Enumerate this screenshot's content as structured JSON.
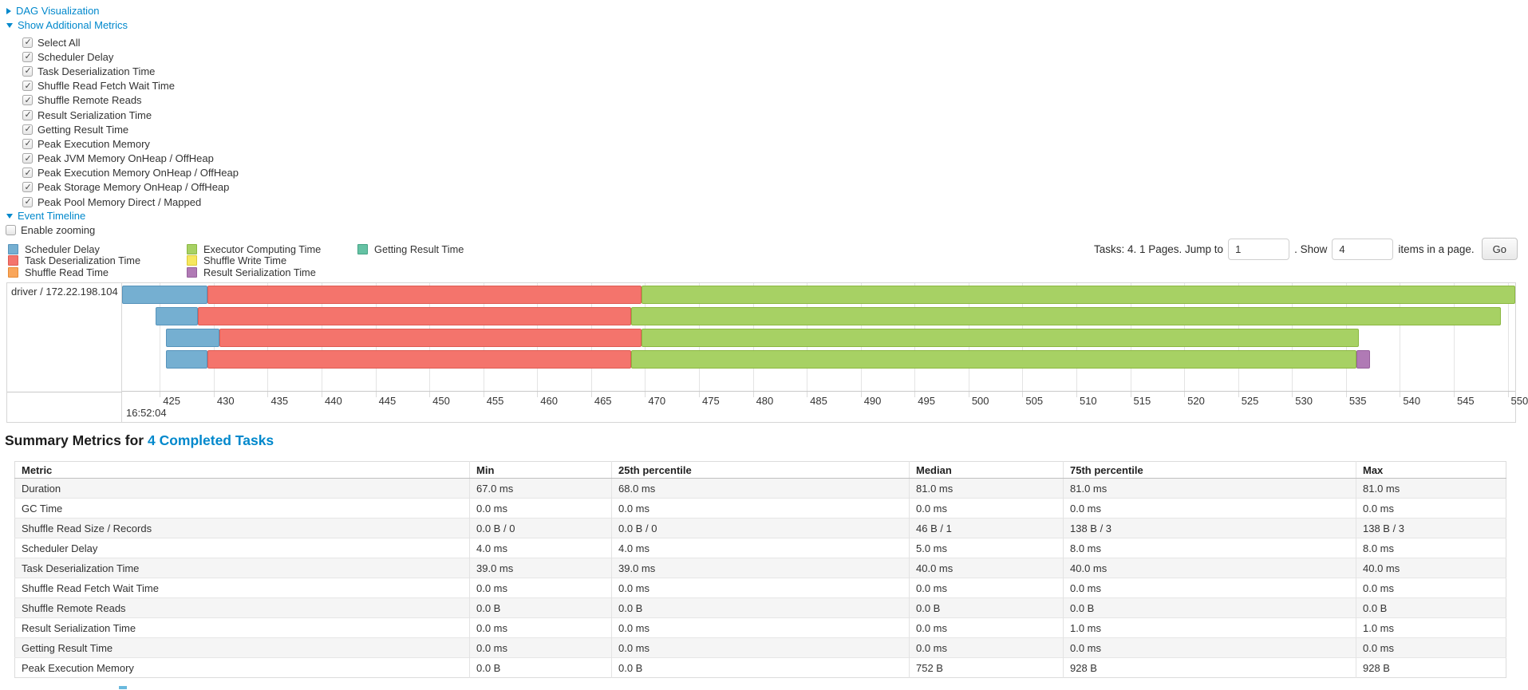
{
  "toggles": {
    "dag": "DAG Visualization",
    "metrics": "Show Additional Metrics",
    "timeline": "Event Timeline"
  },
  "metric_options": [
    "Select All",
    "Scheduler Delay",
    "Task Deserialization Time",
    "Shuffle Read Fetch Wait Time",
    "Shuffle Remote Reads",
    "Result Serialization Time",
    "Getting Result Time",
    "Peak Execution Memory",
    "Peak JVM Memory OnHeap / OffHeap",
    "Peak Execution Memory OnHeap / OffHeap",
    "Peak Storage Memory OnHeap / OffHeap",
    "Peak Pool Memory Direct / Mapped"
  ],
  "enable_zooming_label": "Enable zooming",
  "pagination": {
    "tasks_text": "Tasks: 4. 1 Pages. Jump to",
    "jump_value": "1",
    "show_text": ". Show",
    "show_value": "4",
    "items_text": "items in a page.",
    "go_label": "Go"
  },
  "colors": {
    "link": "#0088cc",
    "scheduler-delay": {
      "fill": "#75AFD1",
      "border": "#5693BB"
    },
    "task-deserialization": {
      "fill": "#F4746C",
      "border": "#DE5B53"
    },
    "shuffle-read": {
      "fill": "#F9A65B",
      "border": "#E78B35"
    },
    "executor-computing": {
      "fill": "#A7D164",
      "border": "#8BB741"
    },
    "shuffle-write": {
      "fill": "#F6E75F",
      "border": "#DCC936"
    },
    "result-serialization": {
      "fill": "#B07AB5",
      "border": "#96609C"
    },
    "getting-result": {
      "fill": "#65C2A4",
      "border": "#45A385"
    }
  },
  "chart_data": {
    "type": "timeline",
    "title": "Event Timeline",
    "row_label": "driver / 172.22.198.104",
    "time_major_label": "16:52:04",
    "x_unit": "milliseconds within 16:52:04",
    "x_domain_ms": [
      421.5,
      550.7
    ],
    "tick_start": 425,
    "tick_end": 550,
    "tick_step": 5,
    "legend_columns": [
      [
        {
          "key": "scheduler-delay",
          "label": "Scheduler Delay"
        },
        {
          "key": "task-deserialization",
          "label": "Task Deserialization Time"
        },
        {
          "key": "shuffle-read",
          "label": "Shuffle Read Time"
        }
      ],
      [
        {
          "key": "executor-computing",
          "label": "Executor Computing Time"
        },
        {
          "key": "shuffle-write",
          "label": "Shuffle Write Time"
        },
        {
          "key": "result-serialization",
          "label": "Result Serialization Time"
        }
      ],
      [
        {
          "key": "getting-result",
          "label": "Getting Result Time"
        }
      ]
    ],
    "tasks": [
      {
        "segments": [
          {
            "key": "scheduler-delay",
            "start": 421.5,
            "end": 429.4
          },
          {
            "key": "task-deserialization",
            "start": 429.4,
            "end": 469.7
          },
          {
            "key": "executor-computing",
            "start": 469.7,
            "end": 550.7
          }
        ]
      },
      {
        "segments": [
          {
            "key": "scheduler-delay",
            "start": 424.6,
            "end": 428.5
          },
          {
            "key": "task-deserialization",
            "start": 428.5,
            "end": 468.7
          },
          {
            "key": "executor-computing",
            "start": 468.7,
            "end": 549.4
          }
        ]
      },
      {
        "segments": [
          {
            "key": "scheduler-delay",
            "start": 425.6,
            "end": 430.5
          },
          {
            "key": "task-deserialization",
            "start": 430.5,
            "end": 469.7
          },
          {
            "key": "executor-computing",
            "start": 469.7,
            "end": 536.2
          }
        ]
      },
      {
        "segments": [
          {
            "key": "scheduler-delay",
            "start": 425.6,
            "end": 429.4
          },
          {
            "key": "task-deserialization",
            "start": 429.4,
            "end": 468.7
          },
          {
            "key": "executor-computing",
            "start": 468.7,
            "end": 536.0
          },
          {
            "key": "result-serialization",
            "start": 536.0,
            "end": 537.2
          }
        ]
      }
    ]
  },
  "summary": {
    "title": "Summary Metrics for",
    "title_link": "4 Completed Tasks",
    "columns": [
      "Metric",
      "Min",
      "25th percentile",
      "Median",
      "75th percentile",
      "Max"
    ],
    "rows": [
      [
        "Duration",
        "67.0 ms",
        "68.0 ms",
        "81.0 ms",
        "81.0 ms",
        "81.0 ms"
      ],
      [
        "GC Time",
        "0.0 ms",
        "0.0 ms",
        "0.0 ms",
        "0.0 ms",
        "0.0 ms"
      ],
      [
        "Shuffle Read Size / Records",
        "0.0 B / 0",
        "0.0 B / 0",
        "46 B / 1",
        "138 B / 3",
        "138 B / 3"
      ],
      [
        "Scheduler Delay",
        "4.0 ms",
        "4.0 ms",
        "5.0 ms",
        "8.0 ms",
        "8.0 ms"
      ],
      [
        "Task Deserialization Time",
        "39.0 ms",
        "39.0 ms",
        "40.0 ms",
        "40.0 ms",
        "40.0 ms"
      ],
      [
        "Shuffle Read Fetch Wait Time",
        "0.0 ms",
        "0.0 ms",
        "0.0 ms",
        "0.0 ms",
        "0.0 ms"
      ],
      [
        "Shuffle Remote Reads",
        "0.0 B",
        "0.0 B",
        "0.0 B",
        "0.0 B",
        "0.0 B"
      ],
      [
        "Result Serialization Time",
        "0.0 ms",
        "0.0 ms",
        "0.0 ms",
        "1.0 ms",
        "1.0 ms"
      ],
      [
        "Getting Result Time",
        "0.0 ms",
        "0.0 ms",
        "0.0 ms",
        "0.0 ms",
        "0.0 ms"
      ],
      [
        "Peak Execution Memory",
        "0.0 B",
        "0.0 B",
        "752 B",
        "928 B",
        "928 B"
      ]
    ]
  }
}
